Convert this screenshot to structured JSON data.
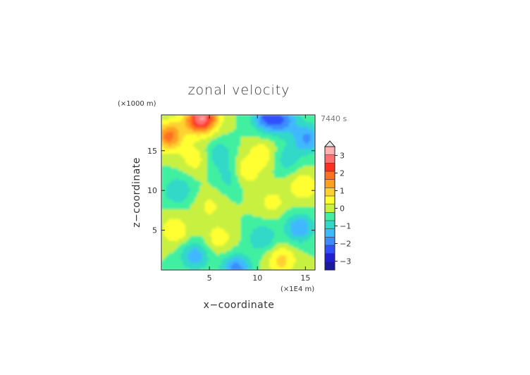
{
  "chart_data": {
    "type": "heatmap",
    "title": "zonal velocity",
    "xlabel": "x−coordinate",
    "ylabel": "z−coordinate",
    "x_unit": "(×1E4 m)",
    "y_unit": "(×1000 m)",
    "time_label": "7440 s",
    "xlim": [
      0,
      16
    ],
    "ylim": [
      0,
      19.5
    ],
    "x_ticks": [
      5,
      10,
      15
    ],
    "y_ticks": [
      5,
      10,
      15
    ],
    "colorbar": {
      "min": -3.5,
      "max": 3.5,
      "step": 0.5,
      "tick_values": [
        3,
        2,
        1,
        0,
        -1,
        -2,
        -3
      ],
      "tick_labels": [
        "3",
        "2",
        "1",
        "0",
        "−1",
        "−2",
        "−3"
      ],
      "colors": [
        "#1a1aa0",
        "#2020d0",
        "#3050ff",
        "#3a8cff",
        "#40b8ff",
        "#30d8c8",
        "#40f0a0",
        "#c8f040",
        "#ffff30",
        "#ffd030",
        "#ffa020",
        "#ff7020",
        "#ff3020",
        "#ff7070",
        "#ffb0b0"
      ]
    },
    "field_features": [
      {
        "x": 0.8,
        "z": 16.8,
        "value": 2.2
      },
      {
        "x": 1.7,
        "z": 10.0,
        "value": -1.0
      },
      {
        "x": 1.4,
        "z": 5.0,
        "value": 1.0
      },
      {
        "x": 3.5,
        "z": 1.8,
        "value": -1.3
      },
      {
        "x": 7.8,
        "z": 0.1,
        "value": -1.8
      },
      {
        "x": 12.5,
        "z": 1.2,
        "value": 1.2
      },
      {
        "x": 14.4,
        "z": 5.3,
        "value": -1.5
      },
      {
        "x": 14.8,
        "z": 10.5,
        "value": 1.0
      },
      {
        "x": 15.2,
        "z": 16.5,
        "value": -1.6
      },
      {
        "x": 11.0,
        "z": 19.2,
        "value": -2.0
      },
      {
        "x": 4.5,
        "z": 19.1,
        "value": 2.4
      },
      {
        "x": 3.6,
        "z": 18.8,
        "value": 1.5
      },
      {
        "x": 12.8,
        "z": 18.8,
        "value": -1.5
      },
      {
        "x": 7.6,
        "z": 11.8,
        "value": -1.4
      },
      {
        "x": 8.4,
        "z": 12.2,
        "value": 1.6
      },
      {
        "x": 6.0,
        "z": 14.5,
        "value": -0.9
      },
      {
        "x": 10.5,
        "z": 14.5,
        "value": 0.9
      },
      {
        "x": 10.5,
        "z": 4.0,
        "value": -1.0
      },
      {
        "x": 6.0,
        "z": 4.0,
        "value": 0.8
      },
      {
        "x": 5.0,
        "z": 8.0,
        "value": 0.6
      },
      {
        "x": 11.5,
        "z": 8.5,
        "value": 0.7
      },
      {
        "x": 3.5,
        "z": 14.0,
        "value": 0.8
      },
      {
        "x": 13.0,
        "z": 14.0,
        "value": -0.8
      }
    ]
  }
}
